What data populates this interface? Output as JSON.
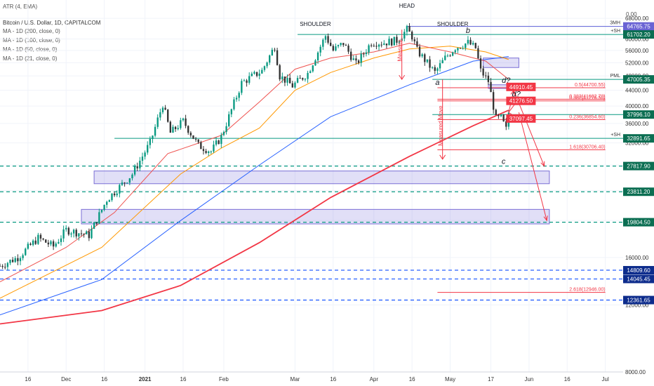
{
  "header": {
    "indicator": "ATR (4, EMA)",
    "symbol": "Bitcoin / U.S. Dollar, 1D, CAPITALCOM",
    "ma_lines": [
      "MA - 1D (200, close, 0)",
      "MA - 1D (100, close, 0)",
      "MA - 1D (50, close, 0)",
      "MA - 1D (21, close, 0)"
    ],
    "top_right_value": "0.00"
  },
  "chart_data": {
    "type": "candlestick",
    "y_axis": {
      "scale": "log",
      "ylim": [
        8000,
        76000
      ],
      "ticks": [
        "68000.00",
        "60000.00",
        "56000.00",
        "52000.00",
        "48000.00",
        "44000.00",
        "40000.00",
        "36000.00",
        "32000.00",
        "28000.00",
        "24000.00",
        "20000.00",
        "16000.00",
        "12000.00",
        "8000.00"
      ]
    },
    "x_axis": {
      "ticks": [
        "16",
        "Dec",
        "16",
        "2021",
        "16",
        "Feb",
        "Mar",
        "16",
        "Apr",
        "16",
        "May",
        "17",
        "Jun",
        "16",
        "Jul"
      ],
      "tick_dates": [
        "2020-11-16",
        "2020-12-01",
        "2020-12-16",
        "2021-01-01",
        "2021-01-16",
        "2021-02-01",
        "2021-03-01",
        "2021-03-16",
        "2021-04-01",
        "2021-04-16",
        "2021-05-01",
        "2021-05-17",
        "2021-06-01",
        "2021-06-16",
        "2021-07-01"
      ],
      "range": [
        "2020-11-05",
        "2021-07-08"
      ]
    },
    "price_path": [
      [
        "2020-11-05",
        15200
      ],
      [
        "2020-11-12",
        16000
      ],
      [
        "2020-11-20",
        18000
      ],
      [
        "2020-11-26",
        17100
      ],
      [
        "2020-12-01",
        18900
      ],
      [
        "2020-12-10",
        18300
      ],
      [
        "2020-12-17",
        22700
      ],
      [
        "2020-12-27",
        26500
      ],
      [
        "2021-01-03",
        32000
      ],
      [
        "2021-01-08",
        40500
      ],
      [
        "2021-01-11",
        34000
      ],
      [
        "2021-01-16",
        36500
      ],
      [
        "2021-01-22",
        31500
      ],
      [
        "2021-01-27",
        30400
      ],
      [
        "2021-01-31",
        33200
      ],
      [
        "2021-02-08",
        46000
      ],
      [
        "2021-02-12",
        47800
      ],
      [
        "2021-02-16",
        49500
      ],
      [
        "2021-02-21",
        57500
      ],
      [
        "2021-02-23",
        48000
      ],
      [
        "2021-02-28",
        45200
      ],
      [
        "2021-03-06",
        48800
      ],
      [
        "2021-03-13",
        61200
      ],
      [
        "2021-03-16",
        56000
      ],
      [
        "2021-03-20",
        58500
      ],
      [
        "2021-03-25",
        51500
      ],
      [
        "2021-03-31",
        58800
      ],
      [
        "2021-04-05",
        58700
      ],
      [
        "2021-04-10",
        59500
      ],
      [
        "2021-04-14",
        63500
      ],
      [
        "2021-04-16",
        61000
      ],
      [
        "2021-04-18",
        56000
      ],
      [
        "2021-04-25",
        49000
      ],
      [
        "2021-04-29",
        53500
      ],
      [
        "2021-05-03",
        57000
      ],
      [
        "2021-05-08",
        58700
      ],
      [
        "2021-05-11",
        56800
      ],
      [
        "2021-05-13",
        49500
      ],
      [
        "2021-05-16",
        46500
      ],
      [
        "2021-05-19",
        37000
      ],
      [
        "2021-05-21",
        37200
      ],
      [
        "2021-05-23",
        34700
      ],
      [
        "2021-05-24",
        38500
      ]
    ],
    "moving_averages": [
      {
        "name": "MA - 1D (200, close, 0)",
        "color": "#f23645",
        "points": [
          [
            "2020-11-05",
            10700
          ],
          [
            "2020-12-15",
            11600
          ],
          [
            "2021-01-15",
            13500
          ],
          [
            "2021-02-15",
            17500
          ],
          [
            "2021-03-15",
            23000
          ],
          [
            "2021-04-15",
            29500
          ],
          [
            "2021-05-10",
            35500
          ],
          [
            "2021-05-24",
            39000
          ]
        ]
      },
      {
        "name": "MA - 1D (100, close, 0)",
        "color": "#2962ff",
        "points": [
          [
            "2020-11-05",
            11300
          ],
          [
            "2020-12-15",
            14000
          ],
          [
            "2021-01-15",
            20000
          ],
          [
            "2021-02-15",
            28000
          ],
          [
            "2021-03-15",
            37500
          ],
          [
            "2021-04-15",
            45500
          ],
          [
            "2021-05-10",
            52500
          ],
          [
            "2021-05-24",
            54000
          ]
        ]
      },
      {
        "name": "MA - 1D (50, close, 0)",
        "color": "#ff9800",
        "points": [
          [
            "2020-11-05",
            12500
          ],
          [
            "2020-12-15",
            17000
          ],
          [
            "2021-01-15",
            26500
          ],
          [
            "2021-01-31",
            31000
          ],
          [
            "2021-02-15",
            35000
          ],
          [
            "2021-03-01",
            44000
          ],
          [
            "2021-03-15",
            49000
          ],
          [
            "2021-04-01",
            53500
          ],
          [
            "2021-04-15",
            56500
          ],
          [
            "2021-05-01",
            57500
          ],
          [
            "2021-05-15",
            55500
          ],
          [
            "2021-05-24",
            53000
          ]
        ]
      },
      {
        "name": "MA - 1D (21, close, 0)",
        "color": "#ef5350",
        "points": [
          [
            "2020-11-05",
            13800
          ],
          [
            "2020-12-01",
            17000
          ],
          [
            "2020-12-20",
            21000
          ],
          [
            "2021-01-10",
            30000
          ],
          [
            "2021-01-31",
            33500
          ],
          [
            "2021-02-15",
            41000
          ],
          [
            "2021-03-01",
            50000
          ],
          [
            "2021-03-15",
            53500
          ],
          [
            "2021-04-01",
            55500
          ],
          [
            "2021-04-15",
            58500
          ],
          [
            "2021-05-01",
            55500
          ],
          [
            "2021-05-15",
            52500
          ],
          [
            "2021-05-24",
            47000
          ]
        ]
      }
    ],
    "price_levels": [
      {
        "price": 64765.75,
        "label": "64765.75",
        "tag": "3MH",
        "color": "#5b5fd6",
        "style": "solid",
        "from": "2021-04-14"
      },
      {
        "price": 61702.2,
        "label": "61702.20",
        "tag": "+SH",
        "color": "#089981",
        "style": "solid",
        "from": "2021-03-02"
      },
      {
        "price": 47005.35,
        "label": "47005.35",
        "tag": "PML",
        "color": "#089981",
        "style": "solid",
        "from": "2021-04-24"
      },
      {
        "price": 37996.1,
        "label": "37996.10",
        "tag": "",
        "color": "#089981",
        "style": "solid",
        "from": "2021-04-24"
      },
      {
        "price": 32891.65,
        "label": "32891.65",
        "tag": "+SH",
        "color": "#089981",
        "style": "solid",
        "from": "2020-12-20"
      },
      {
        "price": 27817.9,
        "label": "27817.90",
        "tag": "",
        "color": "#089981",
        "style": "dashed",
        "from": "2020-11-05"
      },
      {
        "price": 23811.2,
        "label": "23811.20",
        "tag": "",
        "color": "#089981",
        "style": "dashed",
        "from": "2020-11-05"
      },
      {
        "price": 19804.5,
        "label": "19804.50",
        "tag": "",
        "color": "#089981",
        "style": "dashed",
        "from": "2020-11-05"
      },
      {
        "price": 14809.6,
        "label": "14809.60",
        "tag": "",
        "color": "#2962ff",
        "style": "dashed",
        "from": "2020-11-05"
      },
      {
        "price": 14045.45,
        "label": "14045.45",
        "tag": "",
        "color": "#2962ff",
        "style": "dashed",
        "from": "2020-11-05"
      },
      {
        "price": 12361.65,
        "label": "12361.65",
        "tag": "",
        "color": "#2962ff",
        "style": "dashed",
        "from": "2020-11-05"
      }
    ],
    "target_labels": [
      {
        "price": 44910.45,
        "label": "44910.45"
      },
      {
        "price": 41276.5,
        "label": "41276.50"
      },
      {
        "price": 37097.45,
        "label": "37097.45"
      }
    ],
    "fib_levels": [
      {
        "price": 44700.55,
        "label": "0.5(44700.55)"
      },
      {
        "price": 41682.78,
        "label": "0.382(41682.78)"
      },
      {
        "price": 41276.5,
        "label": "0.382(41276.50)"
      },
      {
        "price": 36854.6,
        "label": "0.236(36854.60)"
      },
      {
        "price": 30706.4,
        "label": "1.618(30706.40)"
      },
      {
        "price": 12946.0,
        "label": "2.618(12946.00)"
      }
    ],
    "zones": [
      {
        "from": "2021-05-14",
        "to": "2021-05-28",
        "low": 50500,
        "high": 53500
      },
      {
        "from": "2021-05-16",
        "to": "2021-05-28",
        "low": 44500,
        "high": 45500
      },
      {
        "from": "2020-12-12",
        "to": "2021-06-09",
        "low": 25000,
        "high": 27000
      },
      {
        "from": "2020-12-07",
        "to": "2021-06-09",
        "low": 19600,
        "high": 21400
      }
    ],
    "annotations": [
      {
        "text": "HEAD",
        "date": "2021-04-14",
        "price": 72500
      },
      {
        "text": "SHOULDER",
        "date": "2021-03-09",
        "price": 65000
      },
      {
        "text": "SHOULDER",
        "date": "2021-05-02",
        "price": 65000
      },
      {
        "text": "b",
        "date": "2021-05-08",
        "price": 62200
      },
      {
        "text": "a",
        "date": "2021-04-26",
        "price": 45500
      },
      {
        "text": "c",
        "date": "2021-05-22",
        "price": 28200
      },
      {
        "text": "d?",
        "date": "2021-05-23",
        "price": 46000
      },
      {
        "text": "d?",
        "date": "2021-05-27",
        "price": 42400
      },
      {
        "text": "d?",
        "date": "2021-05-25",
        "price": 36800
      },
      {
        "text": "Measure",
        "date": "2021-04-12",
        "price": 56000,
        "rotate": -90,
        "color": "#f23645"
      },
      {
        "text": "Measured Move",
        "date": "2021-04-28",
        "price": 35500,
        "rotate": -90,
        "color": "#f23645"
      }
    ]
  }
}
